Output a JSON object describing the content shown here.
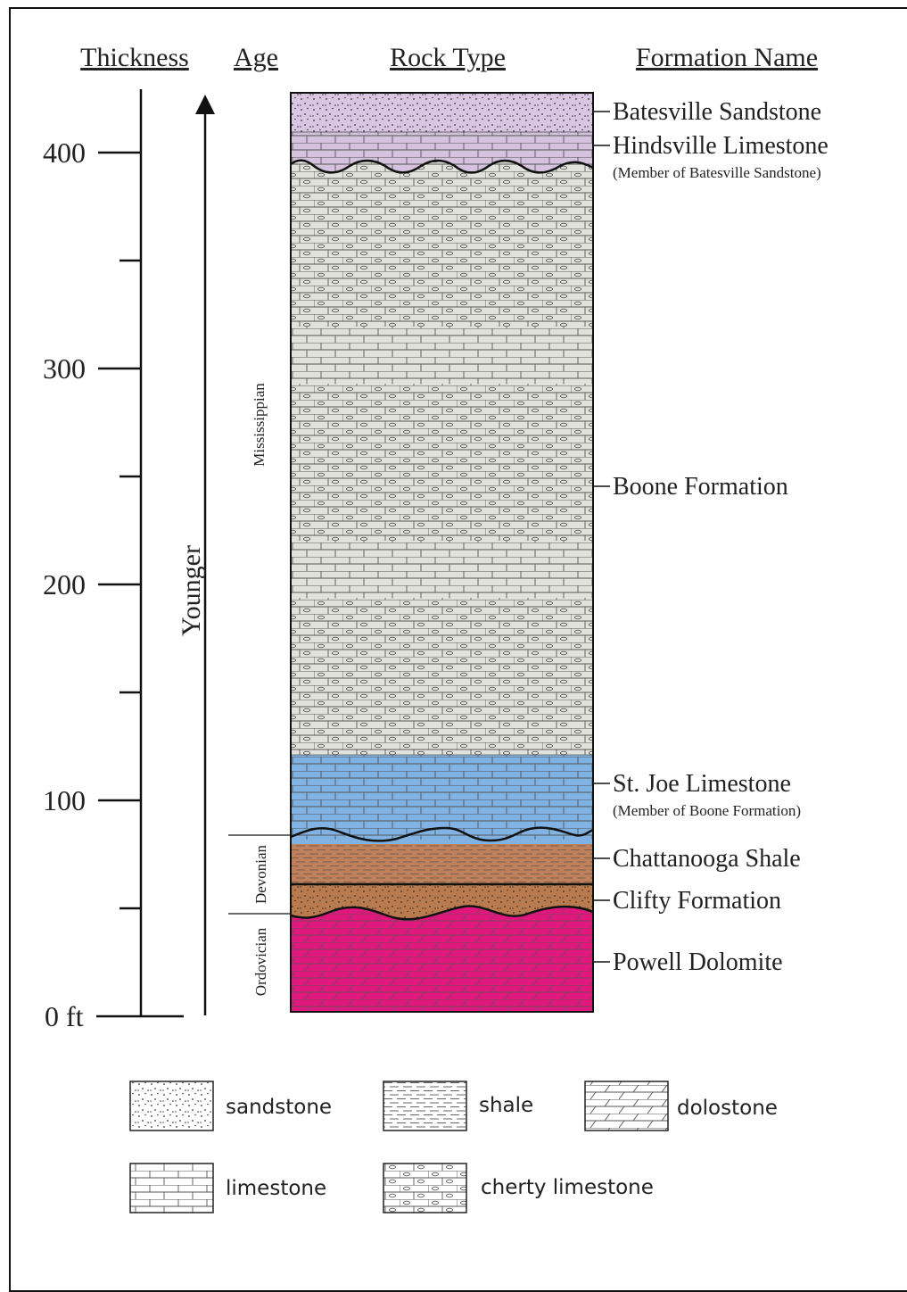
{
  "headers": {
    "thickness": "Thickness",
    "age": "Age",
    "rock_type": "Rock Type",
    "formation_name": "Formation Name"
  },
  "axis": {
    "ticks": [
      {
        "value": 0,
        "label": "0 ft"
      },
      {
        "value": 50,
        "label": ""
      },
      {
        "value": 100,
        "label": "100"
      },
      {
        "value": 150,
        "label": ""
      },
      {
        "value": 200,
        "label": "200"
      },
      {
        "value": 250,
        "label": ""
      },
      {
        "value": 300,
        "label": "300"
      },
      {
        "value": 350,
        "label": ""
      },
      {
        "value": 400,
        "label": "400"
      }
    ]
  },
  "age_arrow": "Younger",
  "ages": [
    {
      "name": "Mississippian"
    },
    {
      "name": "Devonian"
    },
    {
      "name": "Ordovician"
    }
  ],
  "formations": [
    {
      "name": "Batesville Sandstone",
      "sub": ""
    },
    {
      "name": "Hindsville Limestone",
      "sub": "(Member of Batesville Sandstone)"
    },
    {
      "name": "Boone Formation",
      "sub": ""
    },
    {
      "name": "St. Joe Limestone",
      "sub": "(Member of Boone Formation)"
    },
    {
      "name": "Chattanooga Shale",
      "sub": ""
    },
    {
      "name": "Clifty Formation",
      "sub": ""
    },
    {
      "name": "Powell Dolomite",
      "sub": ""
    }
  ],
  "legend": {
    "sandstone": "sandstone",
    "shale": "shale",
    "dolostone": "dolostone",
    "limestone": "limestone",
    "cherty_limestone": "cherty limestone"
  },
  "colors": {
    "sandstone_purple": "#d9c6e3",
    "hindsville_purple": "#d4c2de",
    "boone_gray": "#e2e2dc",
    "st_joe_blue": "#80b3e3",
    "chattanooga_brown": "#c0805a",
    "clifty_brown": "#b97a4e",
    "powell_magenta": "#e0187e"
  }
}
